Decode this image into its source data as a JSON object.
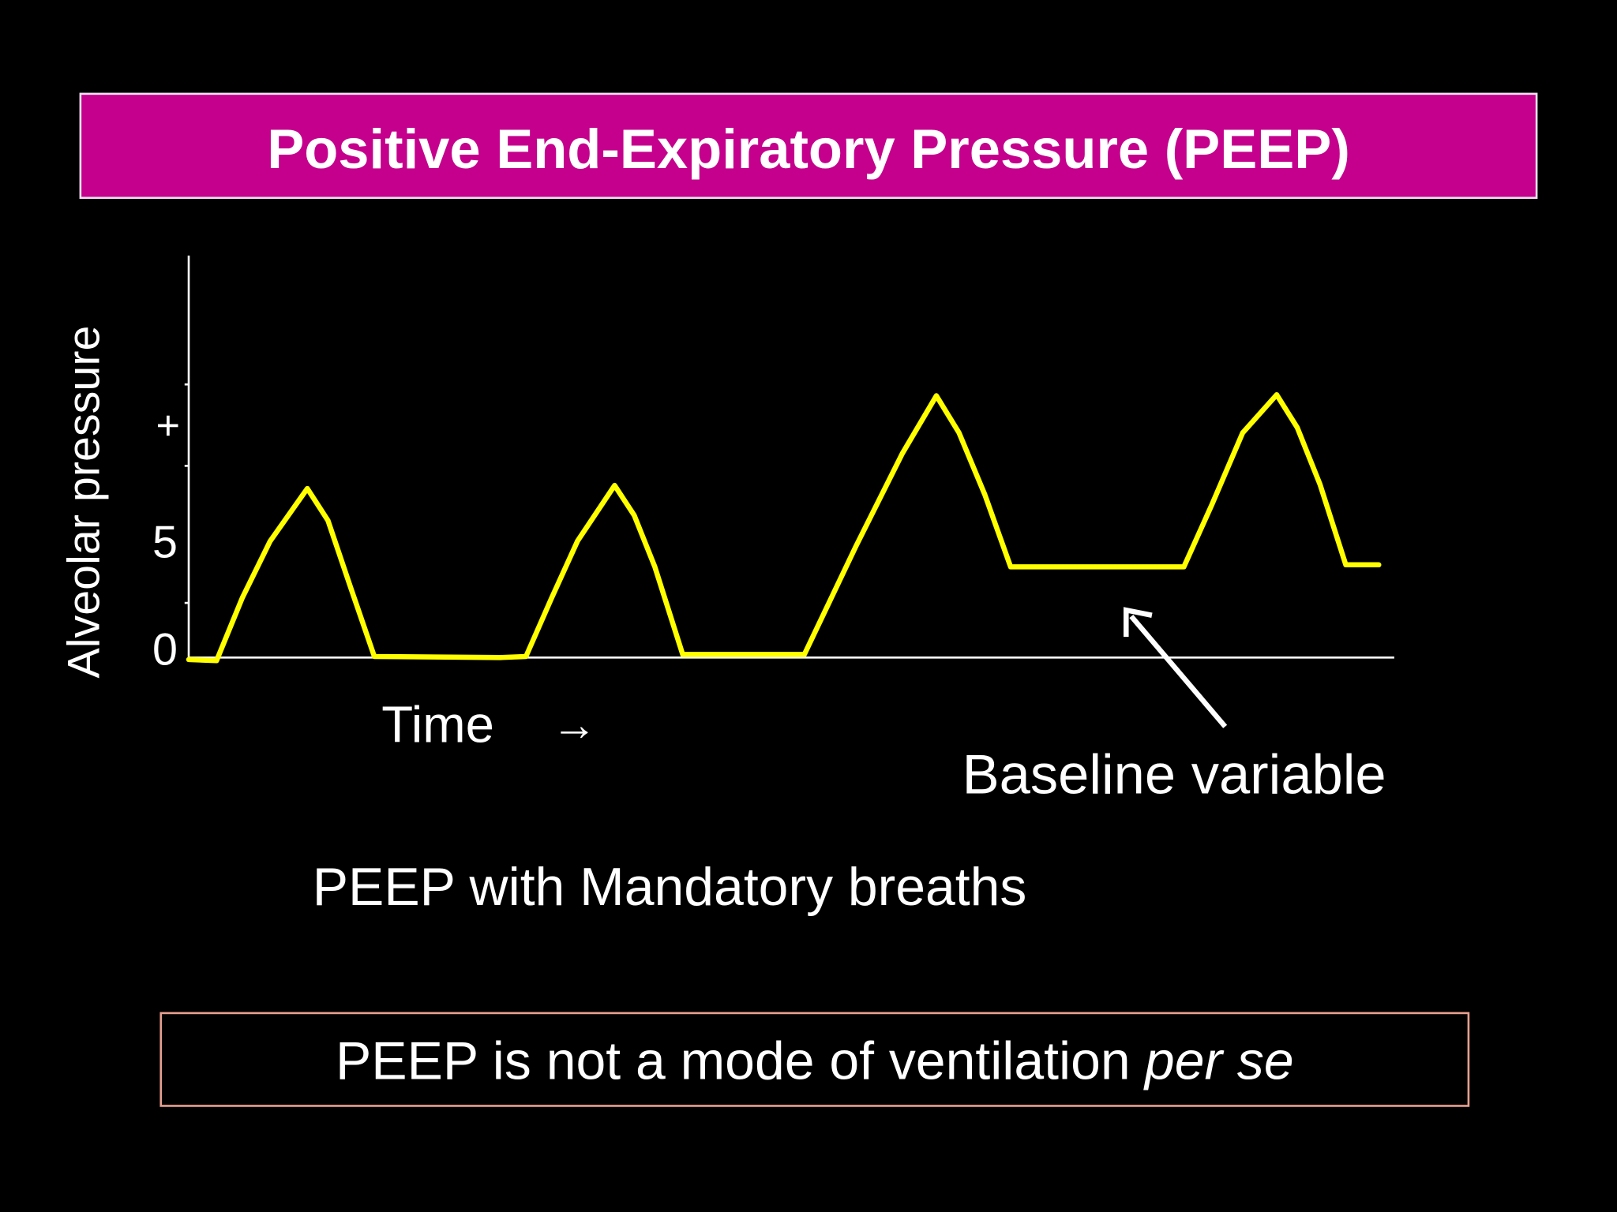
{
  "title": "Positive End-Expiratory Pressure (PEEP)",
  "diagram": {
    "y_axis_label": "Alveolar pressure",
    "y_labels": {
      "plus": "+",
      "five": "5",
      "zero": "0"
    },
    "x_axis_label": "Time",
    "x_axis_arrow": "→",
    "annotation": "Baseline variable"
  },
  "caption": "PEEP with Mandatory breaths",
  "note": {
    "text": "PEEP is not a mode of ventilation",
    "italic": "per se"
  }
}
